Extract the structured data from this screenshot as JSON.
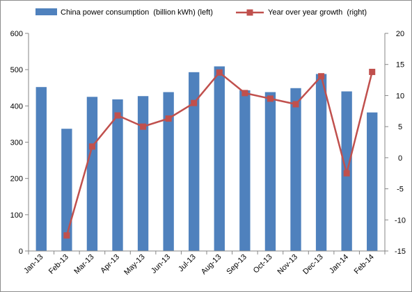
{
  "chart_data": {
    "type": "bar+line",
    "categories": [
      "Jan-13",
      "Feb-13",
      "Mar-13",
      "Apr-13",
      "May-13",
      "Jun-13",
      "Jul-13",
      "Aug-13",
      "Sep-13",
      "Oct-13",
      "Nov-13",
      "Dec-13",
      "Jan-14",
      "Feb-14"
    ],
    "series": [
      {
        "name": "China power consumption  (billion kWh) (left)",
        "type": "bar",
        "axis": "left",
        "color": "#4f81bd",
        "values": [
          452,
          337,
          425,
          418,
          427,
          438,
          493,
          509,
          443,
          438,
          449,
          488,
          440,
          382
        ]
      },
      {
        "name": "Year over year growth  (right)",
        "type": "line",
        "axis": "right",
        "color": "#c0504d",
        "values": [
          null,
          -12.5,
          1.8,
          6.8,
          5.0,
          6.3,
          8.8,
          13.7,
          10.4,
          9.5,
          8.6,
          13.1,
          -2.5,
          13.8
        ]
      }
    ],
    "left_axis": {
      "ylim": [
        0,
        600
      ],
      "ticks": [
        "0",
        "100",
        "200",
        "300",
        "400",
        "500",
        "600"
      ]
    },
    "right_axis": {
      "ylim": [
        -15,
        20
      ],
      "ticks": [
        "-15",
        "-10",
        "-5",
        "0",
        "5",
        "10",
        "15",
        "20"
      ]
    },
    "legend_position": "top",
    "grid": false
  }
}
